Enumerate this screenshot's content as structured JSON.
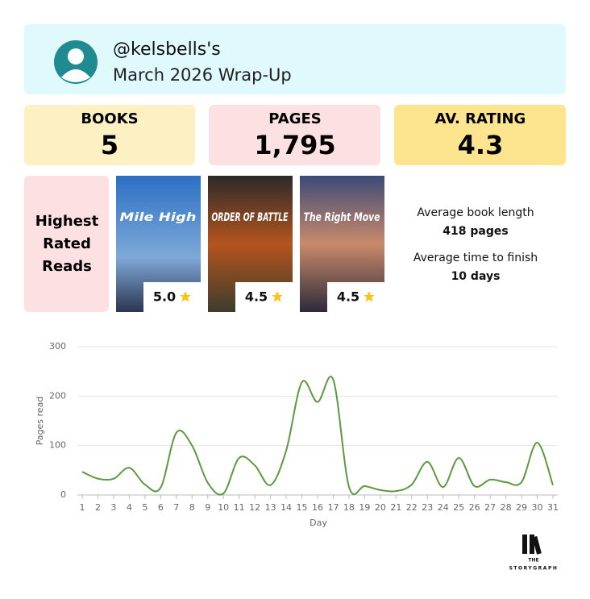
{
  "header": {
    "username": "@kelsbells's",
    "subtitle": "March 2026 Wrap-Up"
  },
  "stats": [
    {
      "label": "BOOKS",
      "value": "5"
    },
    {
      "label": "PAGES",
      "value": "1,795"
    },
    {
      "label": "AV. RATING",
      "value": "4.3"
    }
  ],
  "highest_rated": {
    "title_lines": [
      "Highest",
      "Rated",
      "Reads"
    ],
    "books": [
      {
        "cover_title": "Mile High",
        "rating": "5.0"
      },
      {
        "cover_title": "ORDER OF BATTLE",
        "rating": "4.5"
      },
      {
        "cover_title": "The Right Move",
        "rating": "4.5"
      }
    ]
  },
  "averages": [
    {
      "label": "Average book length",
      "value": "418 pages"
    },
    {
      "label": "Average time to finish",
      "value": "10 days"
    }
  ],
  "chart_data": {
    "type": "line",
    "x_label": "Day",
    "y_label": "Pages read",
    "color": "#5b9a3e",
    "grid": true,
    "x": [
      1,
      2,
      3,
      4,
      5,
      6,
      7,
      8,
      9,
      10,
      11,
      12,
      13,
      14,
      15,
      16,
      17,
      18,
      19,
      20,
      21,
      22,
      23,
      24,
      25,
      26,
      27,
      28,
      29,
      30,
      31
    ],
    "values": [
      47,
      33,
      33,
      55,
      21,
      15,
      126,
      100,
      25,
      3,
      75,
      60,
      20,
      90,
      228,
      188,
      233,
      17,
      18,
      10,
      8,
      21,
      67,
      16,
      75,
      18,
      31,
      26,
      26,
      106,
      20
    ],
    "xlim": [
      1,
      31
    ],
    "ylim": [
      0,
      300
    ],
    "yticks": [
      0,
      100,
      200,
      300
    ]
  },
  "logo": {
    "line1": "THE",
    "line2": "STORYGRAPH"
  }
}
